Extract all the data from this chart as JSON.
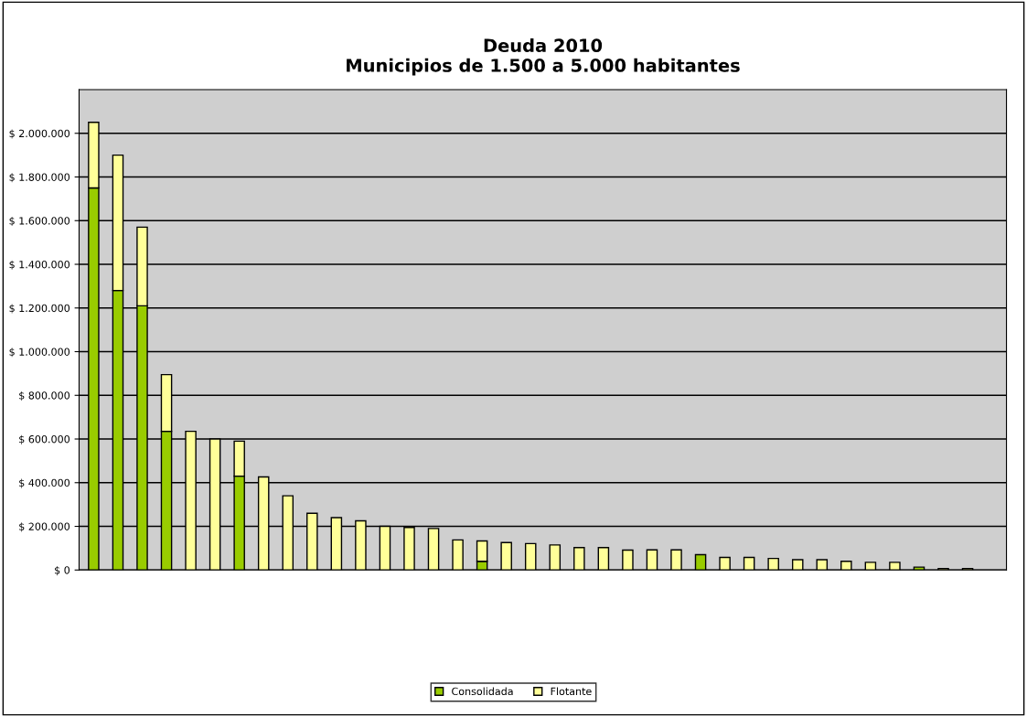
{
  "chart_data": {
    "type": "bar",
    "title": "Deuda 2010\nMunicipios de 1.500 a 5.000 habitantes",
    "stacked": true,
    "categories": [
      null,
      null,
      null,
      null,
      null,
      null,
      null,
      null,
      null,
      null,
      null,
      null,
      null,
      null,
      null,
      null,
      null,
      null,
      null,
      null,
      null,
      null,
      null,
      null,
      null,
      null,
      null,
      null,
      null,
      null,
      null,
      null,
      null,
      null,
      null,
      null,
      null,
      null
    ],
    "series": [
      {
        "name": "Consolidada",
        "color": "#99cc00",
        "values": [
          1750000,
          1280000,
          1210000,
          635000,
          null,
          null,
          430000,
          null,
          null,
          null,
          null,
          null,
          null,
          null,
          null,
          null,
          40000,
          null,
          null,
          null,
          null,
          null,
          null,
          null,
          null,
          70000,
          null,
          null,
          null,
          null,
          null,
          null,
          null,
          null,
          13000,
          null,
          null,
          null
        ]
      },
      {
        "name": "Flotante",
        "color": "#ffff99",
        "values": [
          300000,
          620000,
          360000,
          260000,
          635000,
          600000,
          160000,
          426000,
          340000,
          260000,
          240000,
          225000,
          200000,
          195000,
          190000,
          138000,
          93000,
          126000,
          121000,
          115000,
          103000,
          103000,
          91000,
          92000,
          92000,
          null,
          58000,
          58000,
          53000,
          47000,
          47000,
          40000,
          35000,
          35000,
          null,
          7000,
          7000,
          null
        ]
      }
    ],
    "ylim": [
      0,
      2200000
    ],
    "yticks": [
      {
        "value": 0,
        "label": "$ 0"
      },
      {
        "value": 200000,
        "label": "$ 200.000"
      },
      {
        "value": 400000,
        "label": "$ 400.000"
      },
      {
        "value": 600000,
        "label": "$ 600.000"
      },
      {
        "value": 800000,
        "label": "$ 800.000"
      },
      {
        "value": 1000000,
        "label": "$ 1.000.000"
      },
      {
        "value": 1200000,
        "label": "$ 1.200.000"
      },
      {
        "value": 1400000,
        "label": "$ 1.400.000"
      },
      {
        "value": 1600000,
        "label": "$ 1.600.000"
      },
      {
        "value": 1800000,
        "label": "$ 1.800.000"
      },
      {
        "value": 2000000,
        "label": "$ 2.000.000"
      }
    ],
    "grid": "y",
    "legend": "bottom"
  }
}
